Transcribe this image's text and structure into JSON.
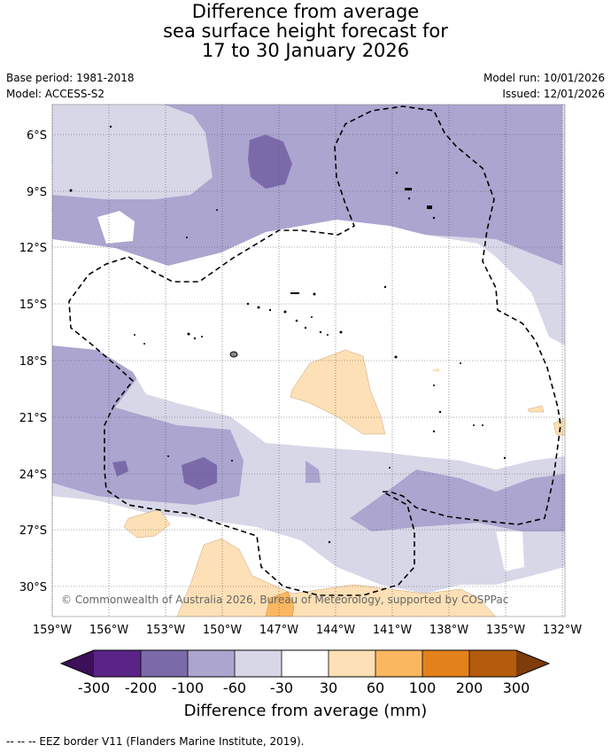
{
  "title": {
    "line1": "Difference from average",
    "line2": "sea surface height forecast for",
    "line3": "17 to 30 January 2026"
  },
  "meta": {
    "base_period": "Base period: 1981-2018",
    "model": "Model: ACCESS-S2",
    "model_run": "Model run: 10/01/2026",
    "issued": "Issued: 12/01/2026"
  },
  "map": {
    "lat_labels": [
      "6°S",
      "9°S",
      "12°S",
      "15°S",
      "18°S",
      "21°S",
      "24°S",
      "27°S",
      "30°S"
    ],
    "lon_labels": [
      "159°W",
      "156°W",
      "153°W",
      "150°W",
      "147°W",
      "144°W",
      "141°W",
      "138°W",
      "135°W",
      "132°W"
    ],
    "copyright": "© Commonwealth of Australia 2026, Bureau of Meteorology, supported by COSPPac"
  },
  "colorbar": {
    "ticks": [
      "-300",
      "-200",
      "-100",
      "-60",
      "-30",
      "30",
      "60",
      "100",
      "200",
      "300"
    ],
    "colors": [
      "#3d1059",
      "#5a2486",
      "#7b6aa9",
      "#aba5cf",
      "#d7d7e8",
      "#ffffff",
      "#fde0b5",
      "#fbb760",
      "#e3821b",
      "#b45b0d",
      "#7f3c0b"
    ],
    "label": "Difference from average (mm)"
  },
  "footnote": "--  --  -- EEZ border V11 (Flanders Marine Institute, 2019)."
}
